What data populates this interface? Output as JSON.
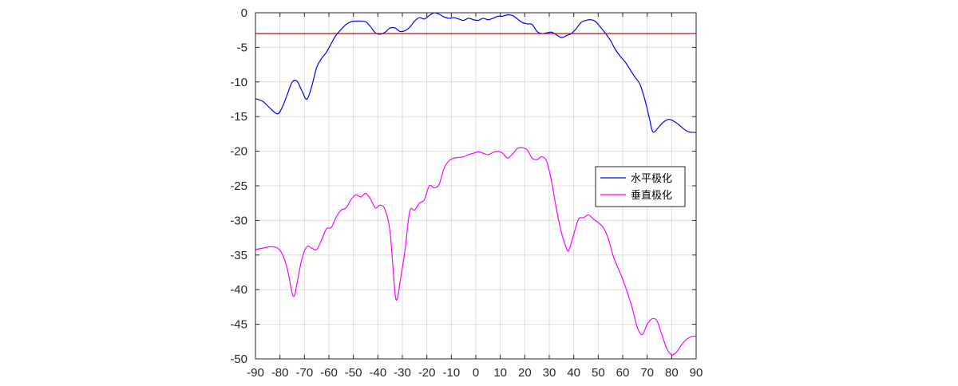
{
  "chart_data": {
    "type": "line",
    "title": "",
    "xlabel": "",
    "ylabel": "",
    "xlim": [
      -90,
      90
    ],
    "ylim": [
      -50,
      0
    ],
    "xticks": [
      -90,
      -80,
      -70,
      -60,
      -50,
      -40,
      -30,
      -20,
      -10,
      0,
      10,
      20,
      30,
      40,
      50,
      60,
      70,
      80,
      90
    ],
    "yticks": [
      0,
      -5,
      -10,
      -15,
      -20,
      -25,
      -30,
      -35,
      -40,
      -45,
      -50
    ],
    "grid": true,
    "legend_position": "right",
    "series": [
      {
        "name": "水平极化",
        "color": "#0000ff",
        "points": [
          [
            -90,
            -12.4
          ],
          [
            -87,
            -12.8
          ],
          [
            -84,
            -13.8
          ],
          [
            -81,
            -14.6
          ],
          [
            -79,
            -13.6
          ],
          [
            -77,
            -11.8
          ],
          [
            -75,
            -10.0
          ],
          [
            -73,
            -9.9
          ],
          [
            -71,
            -11.3
          ],
          [
            -69,
            -12.5
          ],
          [
            -67,
            -10.6
          ],
          [
            -65,
            -7.9
          ],
          [
            -63,
            -6.6
          ],
          [
            -61,
            -5.7
          ],
          [
            -59,
            -4.4
          ],
          [
            -57,
            -3.2
          ],
          [
            -55,
            -2.4
          ],
          [
            -53,
            -1.7
          ],
          [
            -51,
            -1.3
          ],
          [
            -49,
            -1.2
          ],
          [
            -47,
            -1.2
          ],
          [
            -45,
            -1.3
          ],
          [
            -43,
            -2.0
          ],
          [
            -41,
            -2.9
          ],
          [
            -39,
            -3.1
          ],
          [
            -37,
            -2.8
          ],
          [
            -35,
            -2.2
          ],
          [
            -33,
            -2.2
          ],
          [
            -31,
            -2.7
          ],
          [
            -29,
            -2.6
          ],
          [
            -27,
            -2.1
          ],
          [
            -25,
            -1.2
          ],
          [
            -23,
            -0.7
          ],
          [
            -21,
            -0.9
          ],
          [
            -19,
            -0.4
          ],
          [
            -17,
            0.0
          ],
          [
            -15,
            -0.2
          ],
          [
            -13,
            -0.6
          ],
          [
            -11,
            -0.8
          ],
          [
            -9,
            -0.7
          ],
          [
            -7,
            -0.9
          ],
          [
            -5,
            -1.1
          ],
          [
            -3,
            -0.8
          ],
          [
            -1,
            -1.0
          ],
          [
            1,
            -1.1
          ],
          [
            3,
            -0.8
          ],
          [
            5,
            -1.0
          ],
          [
            7,
            -0.8
          ],
          [
            9,
            -0.5
          ],
          [
            11,
            -0.5
          ],
          [
            13,
            -0.3
          ],
          [
            15,
            -0.4
          ],
          [
            17,
            -0.9
          ],
          [
            19,
            -1.4
          ],
          [
            21,
            -1.6
          ],
          [
            23,
            -1.7
          ],
          [
            25,
            -2.7
          ],
          [
            27,
            -3.0
          ],
          [
            29,
            -2.9
          ],
          [
            31,
            -2.8
          ],
          [
            33,
            -3.2
          ],
          [
            35,
            -3.6
          ],
          [
            37,
            -3.3
          ],
          [
            39,
            -3.0
          ],
          [
            41,
            -2.3
          ],
          [
            43,
            -1.4
          ],
          [
            45,
            -1.1
          ],
          [
            47,
            -1.0
          ],
          [
            49,
            -1.3
          ],
          [
            51,
            -2.1
          ],
          [
            53,
            -3.0
          ],
          [
            55,
            -4.0
          ],
          [
            57,
            -5.3
          ],
          [
            59,
            -6.3
          ],
          [
            61,
            -7.1
          ],
          [
            63,
            -8.2
          ],
          [
            65,
            -9.3
          ],
          [
            67,
            -10.3
          ],
          [
            69,
            -12.5
          ],
          [
            71,
            -15.4
          ],
          [
            72,
            -17.0
          ],
          [
            73,
            -17.2
          ],
          [
            75,
            -16.4
          ],
          [
            77,
            -15.7
          ],
          [
            79,
            -15.4
          ],
          [
            81,
            -15.7
          ],
          [
            83,
            -16.2
          ],
          [
            85,
            -16.8
          ],
          [
            87,
            -17.2
          ],
          [
            90,
            -17.3
          ]
        ]
      },
      {
        "name": "",
        "color": "#a00000",
        "points": [
          [
            -90,
            -3.0
          ],
          [
            90,
            -3.0
          ]
        ]
      },
      {
        "name": "垂直极化",
        "color": "#ff00ff",
        "points": [
          [
            -90,
            -34.2
          ],
          [
            -87,
            -34.0
          ],
          [
            -84,
            -33.8
          ],
          [
            -81,
            -34.0
          ],
          [
            -79,
            -34.9
          ],
          [
            -77,
            -37.0
          ],
          [
            -75,
            -40.5
          ],
          [
            -74,
            -40.8
          ],
          [
            -73,
            -39.0
          ],
          [
            -71,
            -35.5
          ],
          [
            -69,
            -33.8
          ],
          [
            -67,
            -34.0
          ],
          [
            -65,
            -34.2
          ],
          [
            -63,
            -32.8
          ],
          [
            -61,
            -31.2
          ],
          [
            -59,
            -31.0
          ],
          [
            -57,
            -29.5
          ],
          [
            -55,
            -28.5
          ],
          [
            -53,
            -28.2
          ],
          [
            -51,
            -27.0
          ],
          [
            -49,
            -26.3
          ],
          [
            -47,
            -26.6
          ],
          [
            -45,
            -26.1
          ],
          [
            -43,
            -26.9
          ],
          [
            -41,
            -28.2
          ],
          [
            -39,
            -27.8
          ],
          [
            -37,
            -28.5
          ],
          [
            -35,
            -31.8
          ],
          [
            -33,
            -40.5
          ],
          [
            -32,
            -41.2
          ],
          [
            -31,
            -39.0
          ],
          [
            -29,
            -34.5
          ],
          [
            -27,
            -28.7
          ],
          [
            -25,
            -28.5
          ],
          [
            -23,
            -27.5
          ],
          [
            -21,
            -27.0
          ],
          [
            -19,
            -25.0
          ],
          [
            -17,
            -25.3
          ],
          [
            -15,
            -24.8
          ],
          [
            -13,
            -22.5
          ],
          [
            -11,
            -21.4
          ],
          [
            -9,
            -21.0
          ],
          [
            -7,
            -20.9
          ],
          [
            -5,
            -20.8
          ],
          [
            -3,
            -20.5
          ],
          [
            -1,
            -20.3
          ],
          [
            1,
            -20.1
          ],
          [
            3,
            -20.3
          ],
          [
            5,
            -20.5
          ],
          [
            7,
            -20.2
          ],
          [
            9,
            -20.0
          ],
          [
            11,
            -20.3
          ],
          [
            13,
            -21.0
          ],
          [
            15,
            -20.4
          ],
          [
            17,
            -19.6
          ],
          [
            19,
            -19.5
          ],
          [
            21,
            -19.8
          ],
          [
            23,
            -21.0
          ],
          [
            25,
            -21.2
          ],
          [
            27,
            -20.8
          ],
          [
            29,
            -21.5
          ],
          [
            31,
            -24.5
          ],
          [
            33,
            -28.5
          ],
          [
            35,
            -31.8
          ],
          [
            37,
            -34.0
          ],
          [
            38,
            -34.3
          ],
          [
            40,
            -32.0
          ],
          [
            42,
            -29.8
          ],
          [
            44,
            -29.6
          ],
          [
            46,
            -29.2
          ],
          [
            48,
            -29.8
          ],
          [
            50,
            -30.3
          ],
          [
            52,
            -31.0
          ],
          [
            54,
            -32.5
          ],
          [
            56,
            -35.0
          ],
          [
            58,
            -36.8
          ],
          [
            60,
            -38.5
          ],
          [
            62,
            -40.5
          ],
          [
            64,
            -42.8
          ],
          [
            66,
            -45.5
          ],
          [
            68,
            -46.5
          ],
          [
            70,
            -45.0
          ],
          [
            72,
            -44.2
          ],
          [
            74,
            -44.5
          ],
          [
            76,
            -46.5
          ],
          [
            78,
            -48.5
          ],
          [
            80,
            -49.4
          ],
          [
            82,
            -49.0
          ],
          [
            84,
            -48.0
          ],
          [
            86,
            -47.2
          ],
          [
            88,
            -46.8
          ],
          [
            90,
            -46.7
          ]
        ]
      }
    ]
  }
}
